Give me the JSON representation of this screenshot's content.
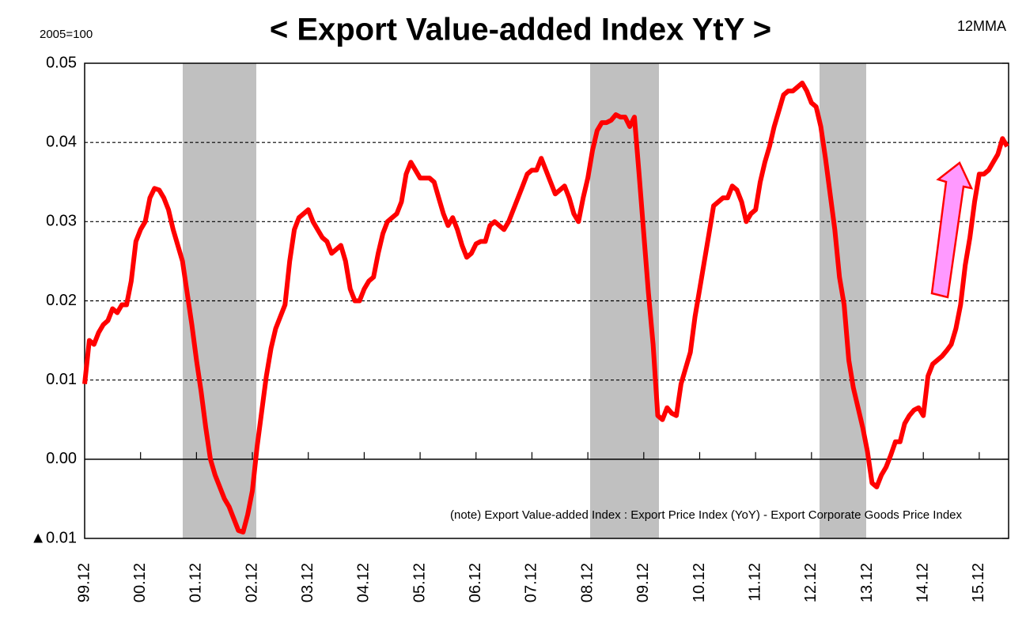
{
  "chart_data": {
    "type": "line",
    "title": "< Export Value-added Index YtY >",
    "subtitle": "2005=100",
    "annotations": [
      "12MMA",
      "(note) Export Value-added Index : Export Price Index (YoY) - Export Corporate Goods Price Index"
    ],
    "categories": [
      "99.12",
      null,
      null,
      null,
      null,
      null,
      null,
      null,
      null,
      null,
      null,
      null,
      "00.12",
      null,
      null,
      null,
      null,
      null,
      null,
      null,
      null,
      null,
      null,
      null,
      "01.12",
      null,
      null,
      null,
      null,
      null,
      null,
      null,
      null,
      null,
      null,
      null,
      "02.12",
      null,
      null,
      null,
      null,
      null,
      null,
      null,
      null,
      null,
      null,
      null,
      "03.12",
      null,
      null,
      null,
      null,
      null,
      null,
      null,
      null,
      null,
      null,
      null,
      "04.12",
      null,
      null,
      null,
      null,
      null,
      null,
      null,
      null,
      null,
      null,
      null,
      "05.12",
      null,
      null,
      null,
      null,
      null,
      null,
      null,
      null,
      null,
      null,
      null,
      "06.12",
      null,
      null,
      null,
      null,
      null,
      null,
      null,
      null,
      null,
      null,
      null,
      "07.12",
      null,
      null,
      null,
      null,
      null,
      null,
      null,
      null,
      null,
      null,
      null,
      "08.12",
      null,
      null,
      null,
      null,
      null,
      null,
      null,
      null,
      null,
      null,
      null,
      "09.12",
      null,
      null,
      null,
      null,
      null,
      null,
      null,
      null,
      null,
      null,
      null,
      "10.12",
      null,
      null,
      null,
      null,
      null,
      null,
      null,
      null,
      null,
      null,
      null,
      "11.12",
      null,
      null,
      null,
      null,
      null,
      null,
      null,
      null,
      null,
      null,
      null,
      "12.12",
      null,
      null,
      null,
      null,
      null,
      null,
      null,
      null,
      null,
      null,
      null,
      "13.12",
      null,
      null,
      null,
      null,
      null,
      null,
      null,
      null,
      null,
      null,
      null,
      "14.12",
      null,
      null,
      null,
      null,
      null,
      null,
      null,
      null,
      null,
      null,
      null,
      "15.12",
      null,
      null,
      null,
      null,
      null,
      null
    ],
    "series": [
      {
        "color": "#ff0000",
        "values": [
          0.0095,
          0.015,
          0.0145,
          0.016,
          0.017,
          0.0175,
          0.019,
          0.0185,
          0.0195,
          0.0195,
          0.0225,
          0.0275,
          0.029,
          0.03,
          0.033,
          0.0342,
          0.034,
          0.033,
          0.0315,
          0.029,
          0.027,
          0.025,
          0.021,
          0.017,
          0.0125,
          0.0085,
          0.004,
          0.0,
          -0.002,
          -0.0035,
          -0.005,
          -0.006,
          -0.0075,
          -0.009,
          -0.0092,
          -0.007,
          -0.004,
          0.0015,
          0.006,
          0.0105,
          0.014,
          0.0165,
          0.018,
          0.0195,
          0.025,
          0.029,
          0.0305,
          0.031,
          0.0315,
          0.03,
          0.029,
          0.028,
          0.0275,
          0.026,
          0.0265,
          0.027,
          0.025,
          0.0215,
          0.02,
          0.02,
          0.0215,
          0.0225,
          0.023,
          0.026,
          0.0285,
          0.03,
          0.0305,
          0.031,
          0.0325,
          0.036,
          0.0375,
          0.0365,
          0.0355,
          0.0355,
          0.0355,
          0.035,
          0.033,
          0.031,
          0.0295,
          0.0305,
          0.029,
          0.027,
          0.0255,
          0.026,
          0.0272,
          0.0275,
          0.0275,
          0.0295,
          0.03,
          0.0295,
          0.029,
          0.03,
          0.0315,
          0.033,
          0.0345,
          0.036,
          0.0365,
          0.0365,
          0.038,
          0.0365,
          0.035,
          0.0335,
          0.034,
          0.0345,
          0.033,
          0.031,
          0.03,
          0.033,
          0.0355,
          0.039,
          0.0415,
          0.0425,
          0.0425,
          0.0428,
          0.0435,
          0.0432,
          0.0432,
          0.042,
          0.0432,
          0.036,
          0.0285,
          0.021,
          0.0145,
          0.0055,
          0.005,
          0.0065,
          0.0058,
          0.0055,
          0.0095,
          0.0115,
          0.0135,
          0.018,
          0.0215,
          0.025,
          0.0285,
          0.032,
          0.0325,
          0.033,
          0.033,
          0.0345,
          0.034,
          0.0325,
          0.03,
          0.031,
          0.0315,
          0.035,
          0.0375,
          0.0395,
          0.042,
          0.044,
          0.046,
          0.0465,
          0.0465,
          0.047,
          0.0475,
          0.0465,
          0.045,
          0.0445,
          0.042,
          0.038,
          0.0335,
          0.029,
          0.023,
          0.0195,
          0.0125,
          0.009,
          0.0065,
          0.004,
          0.001,
          -0.003,
          -0.0035,
          -0.002,
          -0.001,
          0.0005,
          0.0022,
          0.0022,
          0.0045,
          0.0055,
          0.0062,
          0.0065,
          0.0055,
          0.0105,
          0.012,
          0.0125,
          0.013,
          0.0137,
          0.0145,
          0.0165,
          0.0195,
          0.0245,
          0.028,
          0.0325,
          0.036,
          0.036,
          0.0365,
          0.0375,
          0.0385,
          0.0405,
          0.0395
        ]
      }
    ],
    "ylim": [
      -0.01,
      0.05
    ],
    "yticks": [
      {
        "value": -0.01,
        "label": "▲0.01"
      },
      {
        "value": 0,
        "label": "0.00"
      },
      0.01,
      0.02,
      0.03,
      0.04,
      0.05
    ],
    "grid": true
  }
}
